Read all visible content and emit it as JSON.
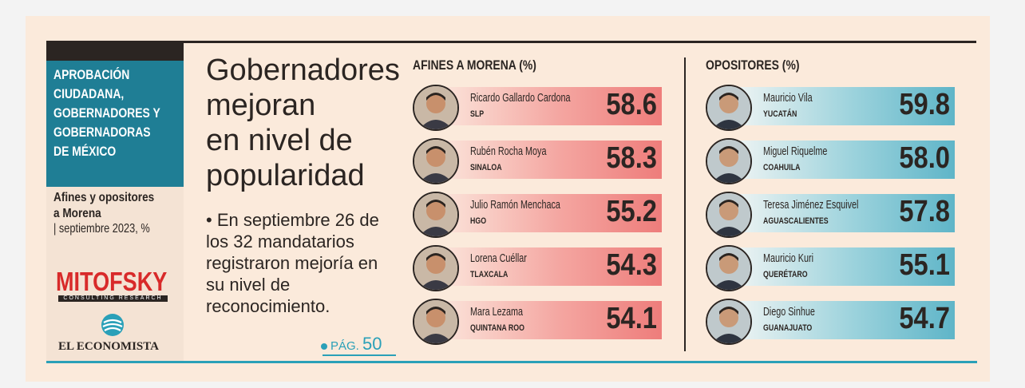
{
  "sidebar": {
    "header_lines": [
      "APROBACIÓN",
      "CIUDADANA,",
      "GOBERNADORES Y",
      "GOBERNADORAS",
      "DE MÉXICO"
    ],
    "subtitle_line1": "Afines y opositores",
    "subtitle_line2": "a Morena",
    "date": "| septiembre 2023, %",
    "brand": "MITOFSKY",
    "brand_tagline": "CONSULTING RESEARCH",
    "publisher": "EL ECONOMISTA"
  },
  "headline_lines": [
    "Gobernadores",
    "mejoran",
    "en nivel de",
    "popularidad"
  ],
  "bullet_text": "• En septiembre 26 de los 32 mandatarios registraron mejoría en su nivel de reconocimiento.",
  "page_ref": {
    "label": "PÁG.",
    "number": "50"
  },
  "colors": {
    "morena_bar": "#ee7d7b",
    "opositores_bar": "#5fb5c8",
    "header_teal": "#1f7e95",
    "brand_red": "#d82a2a"
  },
  "afines": {
    "title": "AFINES A MORENA (%)",
    "items": [
      {
        "name": "Ricardo Gallardo Cardona",
        "state": "SLP",
        "value": "58.6"
      },
      {
        "name": "Rubén Rocha Moya",
        "state": "SINALOA",
        "value": "58.3"
      },
      {
        "name": "Julio Ramón Menchaca",
        "state": "HGO",
        "value": "55.2"
      },
      {
        "name": "Lorena Cuéllar",
        "state": "TLAXCALA",
        "value": "54.3"
      },
      {
        "name": "Mara Lezama",
        "state": "QUINTANA ROO",
        "value": "54.1"
      }
    ]
  },
  "opositores": {
    "title": "OPOSITORES (%)",
    "items": [
      {
        "name": "Mauricio Vila",
        "state": "YUCATÁN",
        "value": "59.8"
      },
      {
        "name": "Miguel Riquelme",
        "state": "COAHUILA",
        "value": "58.0"
      },
      {
        "name": "Teresa Jiménez Esquivel",
        "state": "AGUASCALIENTES",
        "value": "57.8"
      },
      {
        "name": "Mauricio Kuri",
        "state": "QUERÉTARO",
        "value": "55.1"
      },
      {
        "name": "Diego Sinhue",
        "state": "GUANAJUATO",
        "value": "54.7"
      }
    ]
  }
}
